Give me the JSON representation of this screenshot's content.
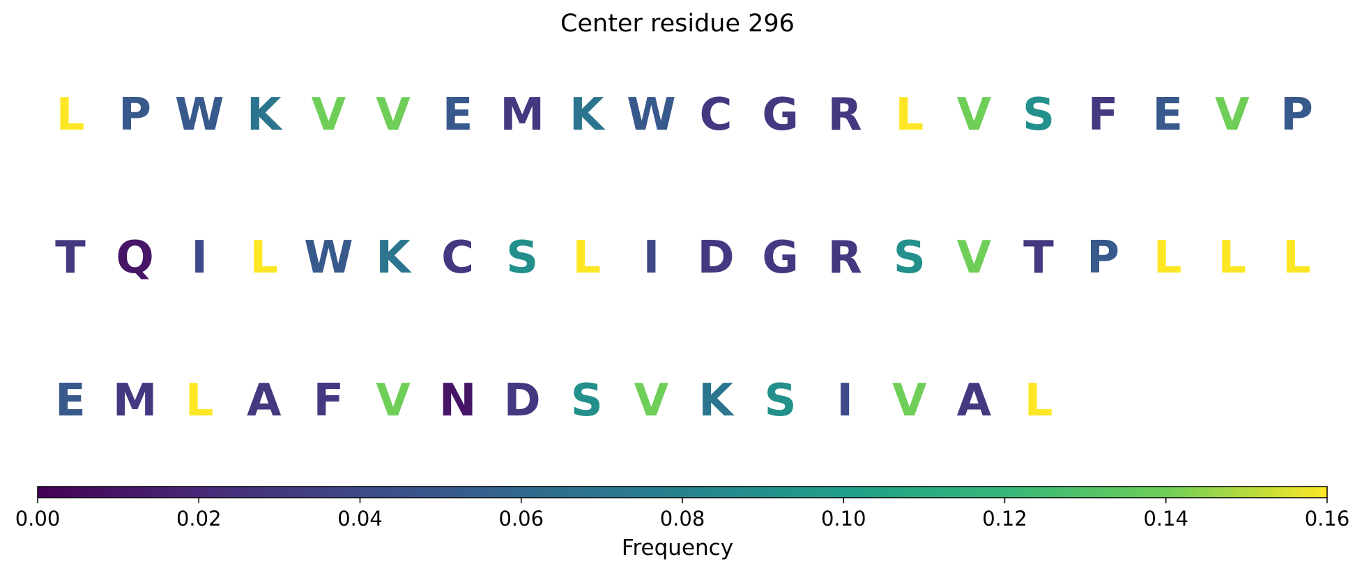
{
  "chart_data": {
    "type": "heatmap",
    "title": "Center residue 296",
    "residues": [
      {
        "letter": "L",
        "frequency": 0.16
      },
      {
        "letter": "P",
        "frequency": 0.05
      },
      {
        "letter": "W",
        "frequency": 0.05
      },
      {
        "letter": "K",
        "frequency": 0.07
      },
      {
        "letter": "V",
        "frequency": 0.14
      },
      {
        "letter": "V",
        "frequency": 0.14
      },
      {
        "letter": "E",
        "frequency": 0.05
      },
      {
        "letter": "M",
        "frequency": 0.03
      },
      {
        "letter": "K",
        "frequency": 0.07
      },
      {
        "letter": "W",
        "frequency": 0.05
      },
      {
        "letter": "C",
        "frequency": 0.03
      },
      {
        "letter": "G",
        "frequency": 0.03
      },
      {
        "letter": "R",
        "frequency": 0.03
      },
      {
        "letter": "L",
        "frequency": 0.16
      },
      {
        "letter": "V",
        "frequency": 0.14
      },
      {
        "letter": "S",
        "frequency": 0.09
      },
      {
        "letter": "F",
        "frequency": 0.03
      },
      {
        "letter": "E",
        "frequency": 0.05
      },
      {
        "letter": "V",
        "frequency": 0.14
      },
      {
        "letter": "P",
        "frequency": 0.05
      },
      {
        "letter": "T",
        "frequency": 0.03
      },
      {
        "letter": "Q",
        "frequency": 0.01
      },
      {
        "letter": "I",
        "frequency": 0.04
      },
      {
        "letter": "L",
        "frequency": 0.16
      },
      {
        "letter": "W",
        "frequency": 0.05
      },
      {
        "letter": "K",
        "frequency": 0.07
      },
      {
        "letter": "C",
        "frequency": 0.03
      },
      {
        "letter": "S",
        "frequency": 0.09
      },
      {
        "letter": "L",
        "frequency": 0.16
      },
      {
        "letter": "I",
        "frequency": 0.04
      },
      {
        "letter": "D",
        "frequency": 0.03
      },
      {
        "letter": "G",
        "frequency": 0.03
      },
      {
        "letter": "R",
        "frequency": 0.03
      },
      {
        "letter": "S",
        "frequency": 0.09
      },
      {
        "letter": "V",
        "frequency": 0.14
      },
      {
        "letter": "T",
        "frequency": 0.03
      },
      {
        "letter": "P",
        "frequency": 0.05
      },
      {
        "letter": "L",
        "frequency": 0.16
      },
      {
        "letter": "L",
        "frequency": 0.16
      },
      {
        "letter": "L",
        "frequency": 0.16
      },
      {
        "letter": "E",
        "frequency": 0.05
      },
      {
        "letter": "M",
        "frequency": 0.03
      },
      {
        "letter": "L",
        "frequency": 0.16
      },
      {
        "letter": "A",
        "frequency": 0.03
      },
      {
        "letter": "F",
        "frequency": 0.03
      },
      {
        "letter": "V",
        "frequency": 0.14
      },
      {
        "letter": "N",
        "frequency": 0.01
      },
      {
        "letter": "D",
        "frequency": 0.03
      },
      {
        "letter": "S",
        "frequency": 0.09
      },
      {
        "letter": "V",
        "frequency": 0.14
      },
      {
        "letter": "K",
        "frequency": 0.07
      },
      {
        "letter": "S",
        "frequency": 0.09
      },
      {
        "letter": "I",
        "frequency": 0.04
      },
      {
        "letter": "V",
        "frequency": 0.14
      },
      {
        "letter": "A",
        "frequency": 0.03
      },
      {
        "letter": "L",
        "frequency": 0.16
      }
    ],
    "letters_per_row": 20,
    "colorbar": {
      "label": "Frequency",
      "range": [
        0,
        0.16
      ],
      "ticks": [
        "0.00",
        "0.02",
        "0.04",
        "0.06",
        "0.08",
        "0.10",
        "0.12",
        "0.14",
        "0.16"
      ],
      "colormap": "viridis"
    }
  }
}
